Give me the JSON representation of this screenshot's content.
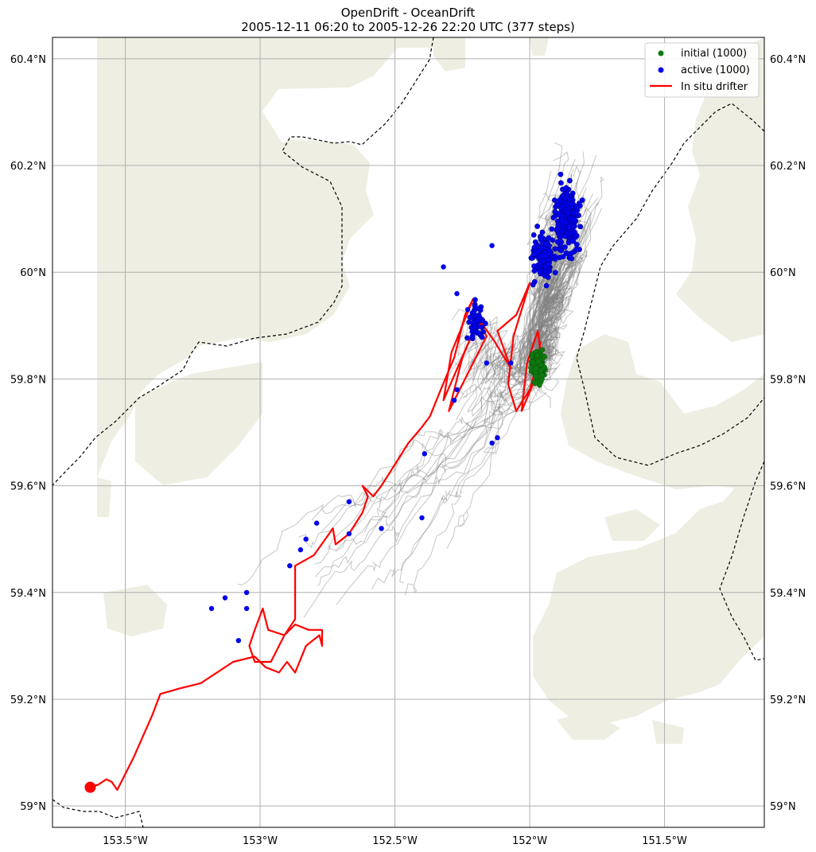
{
  "title": {
    "line1": "OpenDrift - OceanDrift",
    "line2": "2005-12-11 06:20 to 2005-12-26 22:20 UTC (377 steps)"
  },
  "colors": {
    "land": "#eeeee3",
    "sea": "#ffffff",
    "coastline_dash": "#000000",
    "grid": "#b0b0b0",
    "trajectories": "#808080",
    "initial": "#0f7a0f",
    "active": "#0000ee",
    "drifter": "#ff0000"
  },
  "chart_data": {
    "type": "scatter",
    "title": "OpenDrift - OceanDrift\n2005-12-11 06:20 to 2005-12-26 22:20 UTC (377 steps)",
    "xlim": [
      -153.77,
      -151.13
    ],
    "ylim": [
      58.96,
      60.44
    ],
    "x_ticks": [
      -153.5,
      -153.0,
      -152.5,
      -152.0,
      -151.5
    ],
    "x_tick_labels": [
      "153.5°W",
      "153°W",
      "152.5°W",
      "152°W",
      "151.5°W"
    ],
    "y_ticks": [
      59.0,
      59.2,
      59.4,
      59.6,
      59.8,
      60.0,
      60.2,
      60.4
    ],
    "y_tick_labels": [
      "59°N",
      "59.2°N",
      "59.4°N",
      "59.6°N",
      "59.8°N",
      "60°N",
      "60.2°N",
      "60.4°N"
    ],
    "grid": true,
    "legend_position": "top-right",
    "legend": [
      {
        "label": "initial (1000)",
        "kind": "marker",
        "color": "#0f7a0f"
      },
      {
        "label": "active (1000)",
        "kind": "marker",
        "color": "#0000ee"
      },
      {
        "label": "In situ drifter",
        "kind": "line",
        "color": "#ff0000"
      }
    ],
    "initial_points": {
      "count": 1000,
      "center": [
        -151.97,
        59.825
      ],
      "spread": [
        0.025,
        0.035
      ]
    },
    "active_points": {
      "count": 1000,
      "clusters": [
        {
          "share": 0.55,
          "center": [
            -151.86,
            60.1
          ],
          "spread": [
            0.055,
            0.075
          ]
        },
        {
          "share": 0.3,
          "center": [
            -151.95,
            60.03
          ],
          "spread": [
            0.05,
            0.06
          ]
        },
        {
          "share": 0.12,
          "center": [
            -152.2,
            59.91
          ],
          "spread": [
            0.035,
            0.045
          ]
        }
      ],
      "outliers": [
        [
          -152.14,
          60.05
        ],
        [
          -152.32,
          60.01
        ],
        [
          -152.27,
          59.96
        ],
        [
          -152.23,
          59.93
        ],
        [
          -152.27,
          59.78
        ],
        [
          -152.28,
          59.76
        ],
        [
          -152.16,
          59.83
        ],
        [
          -152.07,
          59.83
        ],
        [
          -152.12,
          59.69
        ],
        [
          -152.14,
          59.68
        ],
        [
          -152.39,
          59.66
        ],
        [
          -152.4,
          59.54
        ],
        [
          -152.55,
          59.52
        ],
        [
          -152.67,
          59.57
        ],
        [
          -152.67,
          59.51
        ],
        [
          -152.79,
          59.53
        ],
        [
          -152.83,
          59.5
        ],
        [
          -152.85,
          59.48
        ],
        [
          -152.89,
          59.45
        ],
        [
          -153.05,
          59.4
        ],
        [
          -153.05,
          59.37
        ],
        [
          -153.13,
          59.39
        ],
        [
          -153.18,
          59.37
        ],
        [
          -153.08,
          59.31
        ]
      ]
    },
    "drifter_track": [
      [
        -153.63,
        59.035
      ],
      [
        -153.6,
        59.04
      ],
      [
        -153.57,
        59.05
      ],
      [
        -153.55,
        59.045
      ],
      [
        -153.53,
        59.03
      ],
      [
        -153.47,
        59.09
      ],
      [
        -153.4,
        59.17
      ],
      [
        -153.37,
        59.21
      ],
      [
        -153.3,
        59.22
      ],
      [
        -153.22,
        59.23
      ],
      [
        -153.1,
        59.27
      ],
      [
        -153.02,
        59.28
      ],
      [
        -152.98,
        59.26
      ],
      [
        -152.93,
        59.25
      ],
      [
        -152.9,
        59.27
      ],
      [
        -152.87,
        59.25
      ],
      [
        -152.83,
        59.3
      ],
      [
        -152.78,
        59.32
      ],
      [
        -152.77,
        59.3
      ],
      [
        -152.77,
        59.33
      ],
      [
        -152.82,
        59.33
      ],
      [
        -152.87,
        59.34
      ],
      [
        -152.91,
        59.32
      ],
      [
        -152.96,
        59.27
      ],
      [
        -153.02,
        59.27
      ],
      [
        -153.04,
        59.3
      ],
      [
        -153.02,
        59.33
      ],
      [
        -152.99,
        59.37
      ],
      [
        -152.97,
        59.33
      ],
      [
        -152.91,
        59.32
      ],
      [
        -152.87,
        59.35
      ],
      [
        -152.87,
        59.45
      ],
      [
        -152.8,
        59.47
      ],
      [
        -152.73,
        59.52
      ],
      [
        -152.72,
        59.49
      ],
      [
        -152.67,
        59.51
      ],
      [
        -152.62,
        59.55
      ],
      [
        -152.6,
        59.58
      ],
      [
        -152.62,
        59.6
      ],
      [
        -152.58,
        59.58
      ],
      [
        -152.55,
        59.6
      ],
      [
        -152.5,
        59.64
      ],
      [
        -152.45,
        59.68
      ],
      [
        -152.4,
        59.71
      ],
      [
        -152.37,
        59.73
      ],
      [
        -152.33,
        59.78
      ],
      [
        -152.28,
        59.84
      ],
      [
        -152.24,
        59.92
      ],
      [
        -152.21,
        59.95
      ],
      [
        -152.29,
        59.85
      ],
      [
        -152.32,
        59.76
      ],
      [
        -152.26,
        59.83
      ],
      [
        -152.2,
        59.9
      ],
      [
        -152.25,
        59.84
      ],
      [
        -152.3,
        59.74
      ],
      [
        -152.22,
        59.82
      ],
      [
        -152.16,
        59.88
      ],
      [
        -152.2,
        59.92
      ],
      [
        -152.13,
        59.87
      ],
      [
        -152.07,
        59.82
      ],
      [
        -152.12,
        59.89
      ],
      [
        -152.05,
        59.92
      ],
      [
        -152.0,
        59.98
      ],
      [
        -152.06,
        59.88
      ],
      [
        -152.08,
        59.79
      ],
      [
        -152.05,
        59.74
      ],
      [
        -152.0,
        59.78
      ],
      [
        -151.96,
        59.85
      ],
      [
        -151.97,
        59.89
      ],
      [
        -152.01,
        59.83
      ],
      [
        -152.03,
        59.74
      ],
      [
        -151.98,
        59.8
      ],
      [
        -151.96,
        59.87
      ]
    ]
  }
}
